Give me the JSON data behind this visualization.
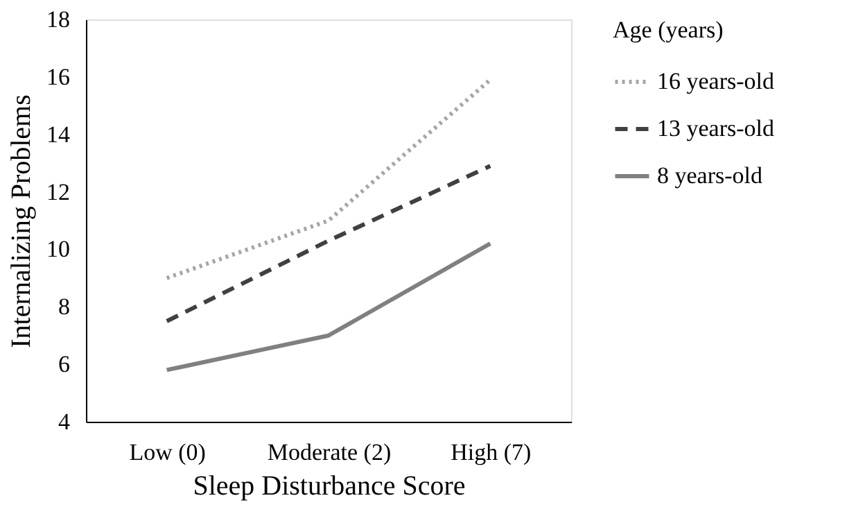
{
  "chart_data": {
    "type": "line",
    "xlabel": "Sleep Disturbance Score",
    "ylabel": "Internalizing  Problems",
    "legend_title": "Age (years)",
    "categories": [
      "Low (0)",
      "Moderate (2)",
      "High (7)"
    ],
    "series": [
      {
        "name": "16 years-old",
        "color": "#a6a6a6",
        "line_style": "dotted",
        "values": [
          9.0,
          11.0,
          15.9
        ]
      },
      {
        "name": "13 years-old",
        "color": "#404040",
        "line_style": "dashed",
        "values": [
          7.5,
          10.3,
          12.9
        ]
      },
      {
        "name": "8 years-old",
        "color": "#808080",
        "line_style": "solid",
        "values": [
          5.8,
          7.0,
          10.2
        ]
      }
    ],
    "ylim": [
      4,
      18
    ],
    "yticks": [
      4,
      6,
      8,
      10,
      12,
      14,
      16,
      18
    ],
    "grid": false,
    "legend": "right",
    "marker": "none"
  }
}
